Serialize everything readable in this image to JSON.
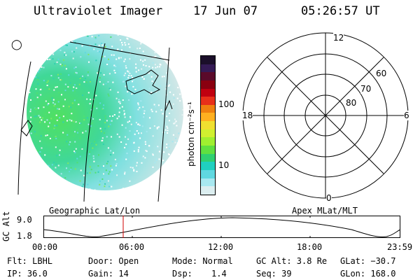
{
  "header": {
    "title": "Ultraviolet Imager",
    "date": "17 Jun 07",
    "time": "05:26:57 UT"
  },
  "colorbar": {
    "unit_label": "photon cm⁻²s⁻¹",
    "ticks": [
      "100",
      "10"
    ],
    "colors": [
      "#1b0f2a",
      "#341a55",
      "#5a0a2a",
      "#8a0010",
      "#c00010",
      "#e8301a",
      "#f08010",
      "#ffb020",
      "#f0e030",
      "#d0f030",
      "#a0ef30",
      "#60e040",
      "#30d070",
      "#20d0c0",
      "#60d8e0",
      "#a8e8f0",
      "#dceef0"
    ]
  },
  "polar": {
    "mlt_labels": {
      "top": "12",
      "left": "18",
      "right": "6",
      "bottom": "0"
    },
    "lat_labels": [
      "60",
      "70",
      "80"
    ]
  },
  "altitude_panel": {
    "left_title": "Geographic Lat/Lon",
    "right_title": "Apex MLat/MLT",
    "ylabel": "GC Alt",
    "yticks": [
      "9.0",
      "1.8"
    ],
    "xticks": [
      "00:00",
      "06:00",
      "12:00",
      "18:00",
      "23:59"
    ],
    "marker_color": "#d00000"
  },
  "status": {
    "flt": "Flt: LBHL",
    "door": "Door: Open",
    "mode": "Mode: Normal",
    "gcalt": "GC Alt: 3.8 Re",
    "glat": "GLat: −30.7",
    "ip": "IP: 36.0",
    "gain": "Gain: 14",
    "dsp_label": "Dsp:",
    "dsp_value": "1.4",
    "seq": "Seq: 39",
    "glon": "GLon: 168.0"
  }
}
